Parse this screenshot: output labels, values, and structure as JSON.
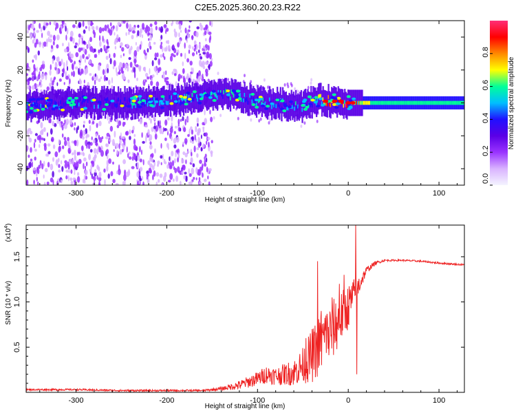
{
  "title": "C2E5.2025.360.20.23.R22",
  "colors": {
    "snr_line": "#ee2222",
    "colormap": [
      "#f4f4ff",
      "#d9b3ff",
      "#9a33ff",
      "#5a00e6",
      "#2010ff",
      "#00bfff",
      "#00ff99",
      "#ffff00",
      "#ff8800",
      "#ff0000",
      "#ff2e78"
    ]
  },
  "chart_data": [
    {
      "type": "heatmap",
      "xlabel": "Height of straight line (km)",
      "ylabel": "Frequency (Hz)",
      "xlim": [
        -355,
        128
      ],
      "ylim": [
        -50,
        50
      ],
      "x_ticks": [
        "-300",
        "-200",
        "-100",
        "0",
        "100"
      ],
      "x_tick_values": [
        -300,
        -200,
        -100,
        0,
        100
      ],
      "y_ticks": [
        "40",
        "20",
        "0",
        "-20",
        "-40"
      ],
      "y_tick_values": [
        40,
        20,
        0,
        -20,
        -40
      ],
      "colorbar": {
        "label": "Normalized spectral amplitude",
        "range": [
          0,
          1
        ],
        "ticks": [
          "0.0",
          "0.2",
          "0.4",
          "0.6",
          "0.8"
        ],
        "tick_values": [
          0.0,
          0.2,
          0.4,
          0.6,
          0.8
        ]
      },
      "noise_region": {
        "x_from": -355,
        "x_to": -150,
        "freq_spread": 50
      },
      "ridge": {
        "x": [
          -355,
          -300,
          -250,
          -200,
          -160,
          -130,
          -110,
          -90,
          -70,
          -50,
          -35,
          -20,
          -10,
          0,
          10,
          30,
          60,
          100,
          128
        ],
        "y": [
          -2,
          0,
          0,
          1,
          4,
          5,
          2,
          0,
          -1,
          -2,
          2,
          1,
          1,
          0,
          0,
          0,
          0,
          0,
          0
        ],
        "amplitude": [
          0.45,
          0.4,
          0.4,
          0.45,
          0.5,
          0.55,
          0.5,
          0.5,
          0.5,
          0.45,
          0.6,
          0.9,
          0.85,
          0.8,
          0.75,
          0.6,
          0.55,
          0.55,
          0.55
        ]
      }
    },
    {
      "type": "line",
      "xlabel": "Height of straight line (km)",
      "ylabel": "SNR (10 * v/v)",
      "y_multiplier": "(x10",
      "y_multiplier_exp": "4",
      "y_multiplier_close": ")",
      "xlim": [
        -355,
        128
      ],
      "ylim": [
        0,
        1.85
      ],
      "x_ticks": [
        "-300",
        "-200",
        "-100",
        "0",
        "100"
      ],
      "x_tick_values": [
        -300,
        -200,
        -100,
        0,
        100
      ],
      "y_ticks": [
        "1.5",
        "1.0",
        "0.5"
      ],
      "y_tick_values": [
        1.5,
        1.0,
        0.5
      ],
      "series": [
        {
          "x": [
            -355,
            -300,
            -250,
            -200,
            -160,
            -140,
            -120,
            -100,
            -90,
            -80,
            -70,
            -60,
            -50,
            -40,
            -30,
            -20,
            -10,
            0,
            5,
            10,
            15,
            20,
            30,
            40,
            60,
            80,
            100,
            128
          ],
          "y": [
            0.03,
            0.03,
            0.02,
            0.02,
            0.02,
            0.04,
            0.08,
            0.15,
            0.2,
            0.18,
            0.2,
            0.22,
            0.3,
            0.4,
            0.55,
            0.65,
            0.8,
            0.95,
            1.05,
            1.15,
            1.25,
            1.35,
            1.43,
            1.46,
            1.46,
            1.45,
            1.43,
            1.41
          ],
          "noise": [
            0.01,
            0.01,
            0.01,
            0.01,
            0.01,
            0.02,
            0.05,
            0.08,
            0.1,
            0.1,
            0.12,
            0.15,
            0.2,
            0.3,
            0.35,
            0.35,
            0.3,
            0.25,
            0.2,
            0.15,
            0.08,
            0.04,
            0.02,
            0.01,
            0.01,
            0.01,
            0.01,
            0.01
          ],
          "spikes": [
            [
              -34,
              1.45
            ],
            [
              -30,
              0.9
            ],
            [
              -25,
              0.85
            ],
            [
              -18,
              1.05
            ],
            [
              -10,
              1.2
            ],
            [
              -5,
              1.3
            ],
            [
              8,
              1.85
            ],
            [
              9,
              0.2
            ],
            [
              -40,
              0.7
            ],
            [
              -47,
              0.6
            ]
          ]
        }
      ]
    }
  ]
}
